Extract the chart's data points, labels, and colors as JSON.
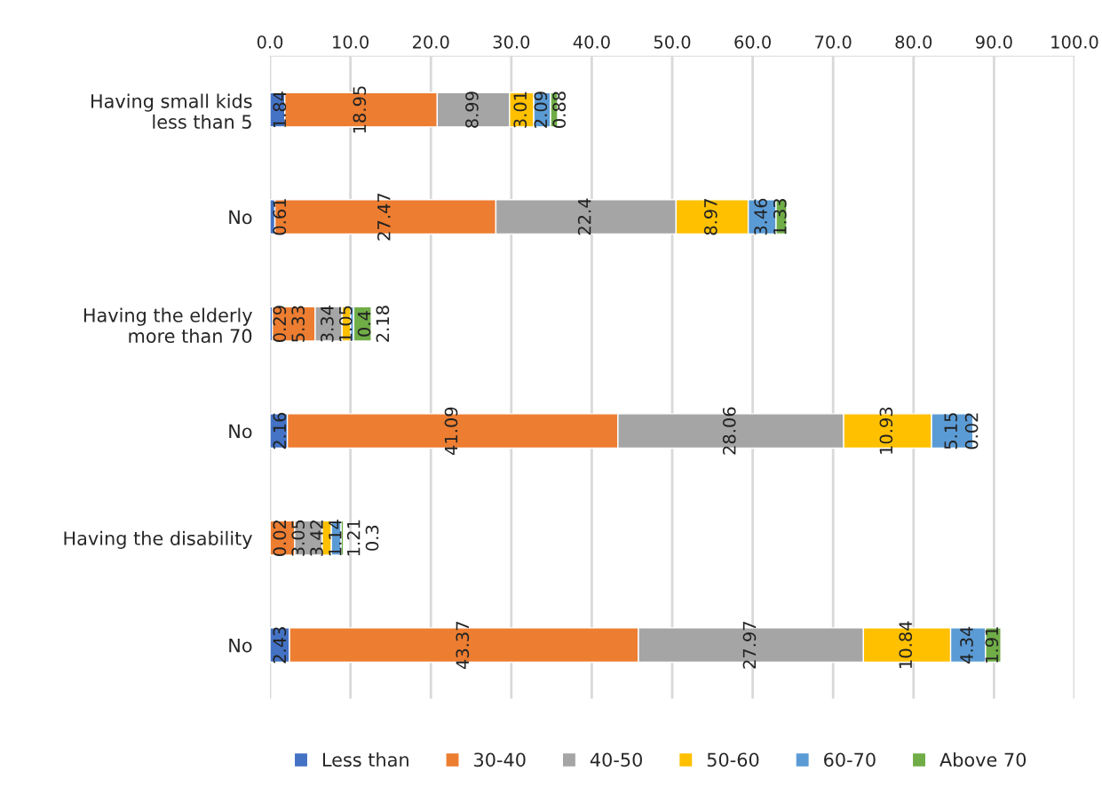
{
  "chart_data": {
    "type": "bar",
    "orientation": "horizontal",
    "stacked": true,
    "data_labels": true,
    "grid": "x",
    "legend": "bottom",
    "categories": [
      "Having small kids\nless than 5",
      "No",
      "Having the elderly\nmore than 70",
      "No",
      "Having the disability",
      "No"
    ],
    "xlim": [
      0,
      100
    ],
    "xticks": [
      {
        "value": 0,
        "label": "0.0"
      },
      {
        "value": 10,
        "label": "10.0"
      },
      {
        "value": 20,
        "label": "20.0"
      },
      {
        "value": 30,
        "label": "30.0"
      },
      {
        "value": 40,
        "label": "40.0"
      },
      {
        "value": 50,
        "label": "50.0"
      },
      {
        "value": 60,
        "label": "60.0"
      },
      {
        "value": 70,
        "label": "70.0"
      },
      {
        "value": 80,
        "label": "80.0"
      },
      {
        "value": 90,
        "label": "90.0"
      },
      {
        "value": 100,
        "label": "100.0"
      }
    ],
    "series": [
      {
        "name": "Less than",
        "color": "#4472c4",
        "values": [
          1.84,
          0.61,
          0.29,
          2.16,
          0.02,
          2.43
        ]
      },
      {
        "name": "30-40",
        "color": "#ed7d31",
        "values": [
          18.95,
          27.47,
          5.33,
          41.09,
          3.05,
          43.37
        ]
      },
      {
        "name": "40-50",
        "color": "#a5a5a5",
        "values": [
          8.99,
          22.4,
          3.34,
          28.06,
          3.42,
          27.97
        ]
      },
      {
        "name": "50-60",
        "color": "#ffc000",
        "values": [
          3.01,
          8.97,
          1.05,
          10.93,
          1.14,
          10.84
        ]
      },
      {
        "name": "60-70",
        "color": "#5b9bd5",
        "values": [
          2.09,
          3.46,
          0.4,
          5.15,
          1.21,
          4.34
        ]
      },
      {
        "name": "Above 70",
        "color": "#70ad47",
        "values": [
          0.88,
          1.33,
          2.18,
          0.02,
          0.3,
          1.91
        ]
      }
    ]
  }
}
